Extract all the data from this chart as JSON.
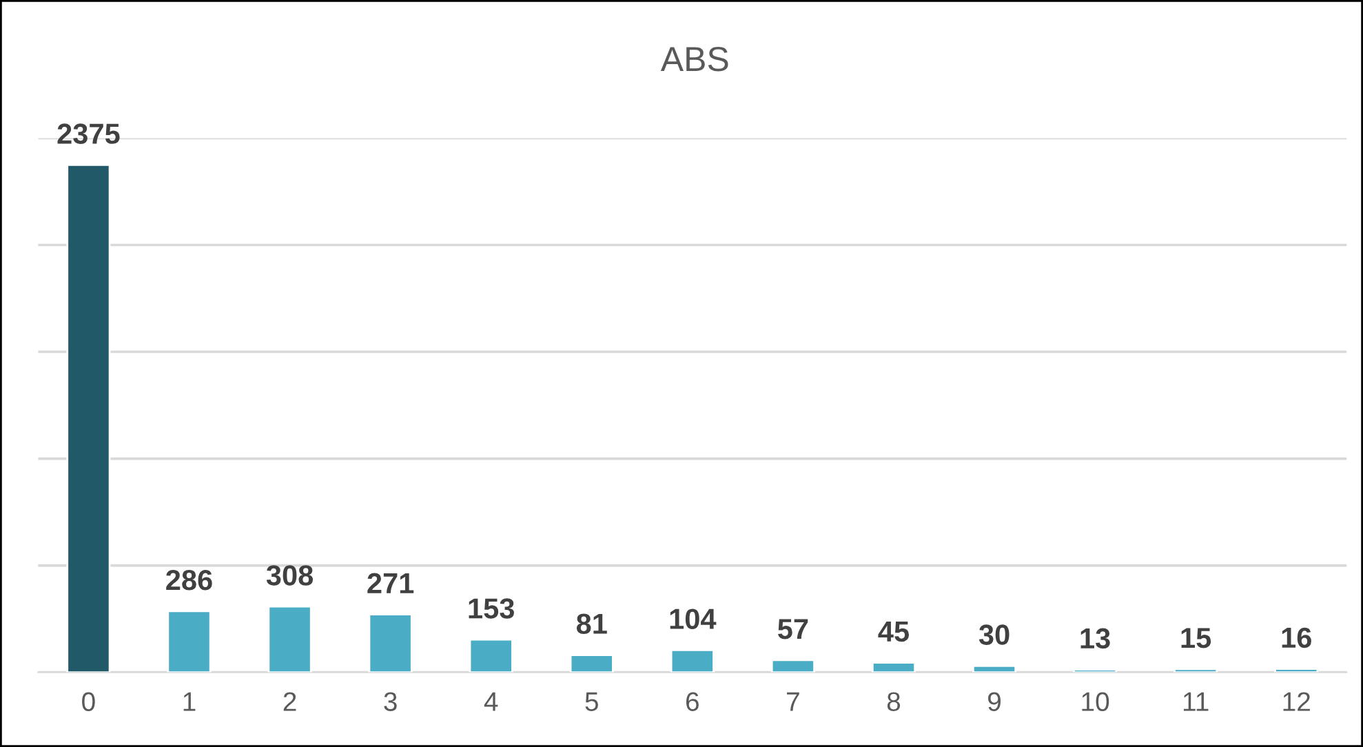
{
  "chart_data": {
    "type": "bar",
    "title": "ABS",
    "categories": [
      "0",
      "1",
      "2",
      "3",
      "4",
      "5",
      "6",
      "7",
      "8",
      "9",
      "10",
      "11",
      "12"
    ],
    "values": [
      2375,
      286,
      308,
      271,
      153,
      81,
      104,
      57,
      45,
      30,
      13,
      15,
      16
    ],
    "colors": [
      "#215968",
      "#4bacc6",
      "#4bacc6",
      "#4bacc6",
      "#4bacc6",
      "#4bacc6",
      "#4bacc6",
      "#4bacc6",
      "#4bacc6",
      "#4bacc6",
      "#4bacc6",
      "#4bacc6",
      "#4bacc6"
    ],
    "ylim": [
      0,
      2500
    ],
    "yticks": [
      {
        "value": 0,
        "label": null
      },
      {
        "value": 500,
        "label": null
      },
      {
        "value": 1000,
        "label": null
      },
      {
        "value": 1500,
        "label": null
      },
      {
        "value": 2000,
        "label": null
      },
      {
        "value": 2500,
        "label": null
      }
    ],
    "tick_labels": "x",
    "grid": "y",
    "data_labels": true,
    "legend": false
  }
}
